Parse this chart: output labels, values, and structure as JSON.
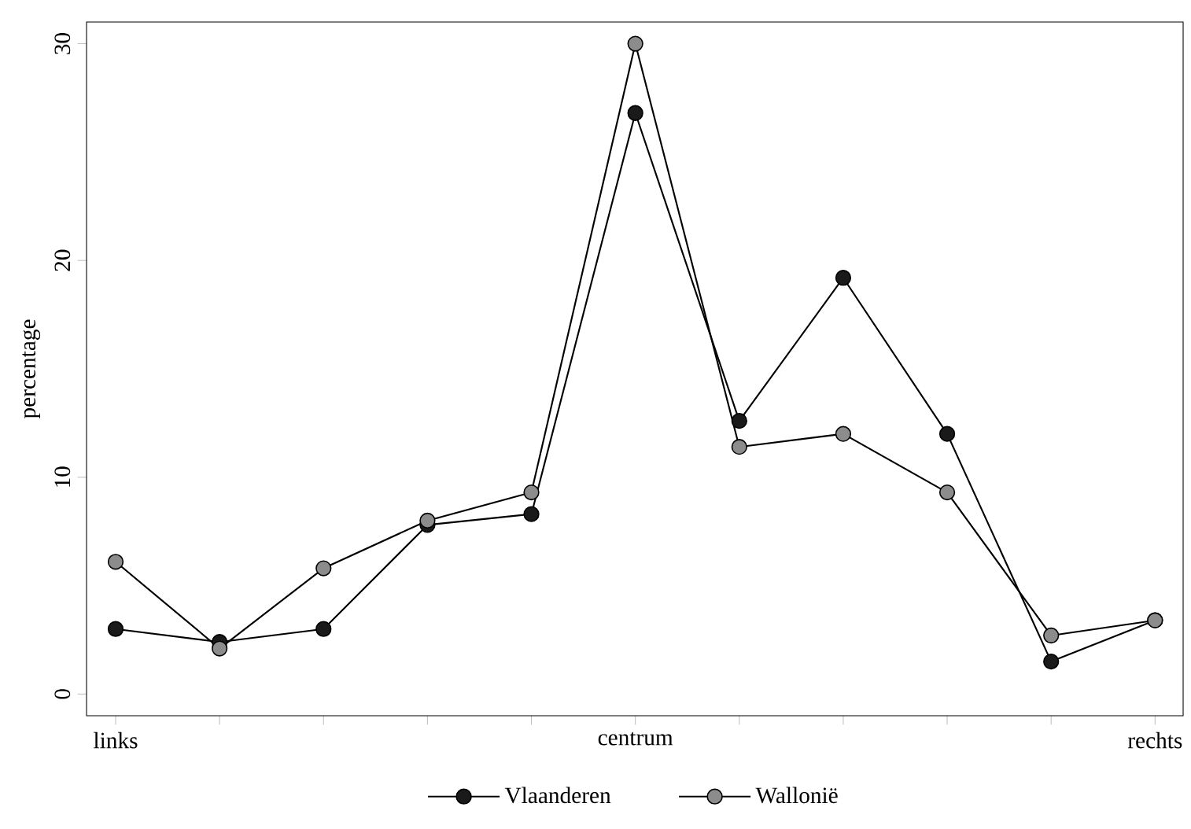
{
  "chart_data": {
    "type": "line",
    "ylabel": "percentage",
    "categories": [
      "links",
      null,
      null,
      null,
      null,
      "centrum",
      null,
      null,
      null,
      null,
      "rechts"
    ],
    "series": [
      {
        "name": "Vlaanderen",
        "color": "#1a1a1a",
        "values": [
          3.0,
          2.4,
          3.0,
          7.8,
          8.3,
          26.8,
          12.6,
          19.2,
          12.0,
          1.5,
          3.4
        ]
      },
      {
        "name": "Wallonië",
        "color": "#8c8c8c",
        "values": [
          6.1,
          2.1,
          5.8,
          8.0,
          9.3,
          30.0,
          11.4,
          12.0,
          9.3,
          2.7,
          3.4
        ]
      }
    ],
    "ylim": [
      -1,
      31
    ],
    "yticks": [
      0,
      10,
      20,
      30
    ],
    "grid": false,
    "legend": "bottom",
    "marker": "circle",
    "line_style": "solid"
  }
}
